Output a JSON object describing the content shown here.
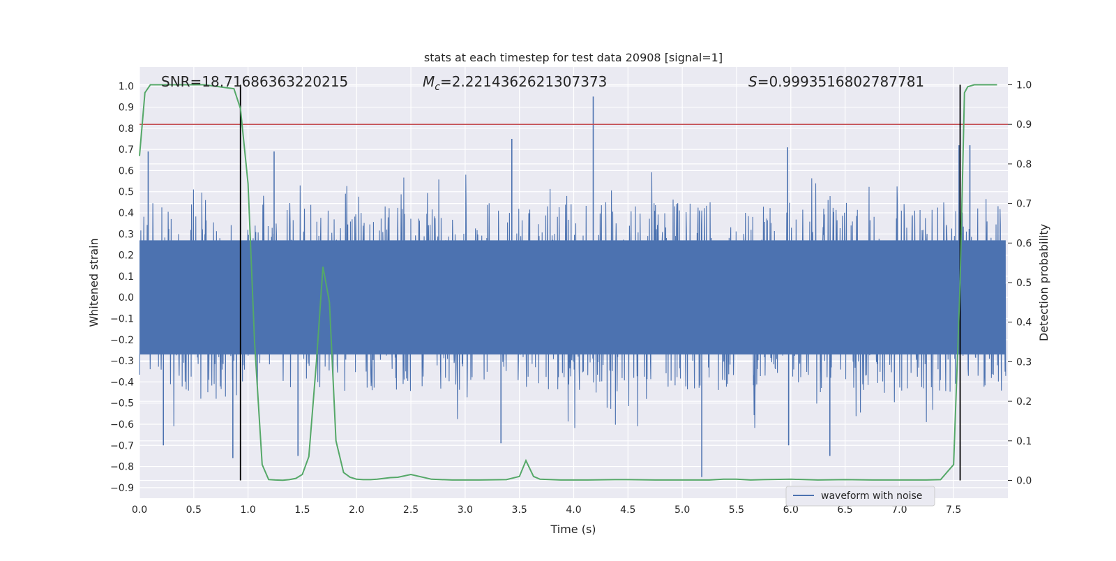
{
  "chart_data": {
    "type": "line",
    "title": "stats at each timestep for test data 20908 [signal=1]",
    "xlabel": "Time (s)",
    "ylabel": "Whitened strain",
    "y2label": "Detection probability",
    "xlim": [
      0.0,
      8.0
    ],
    "ylim": [
      -0.95,
      1.09
    ],
    "y2lim": [
      -0.045,
      1.045
    ],
    "x_ticks": [
      "0.0",
      "0.5",
      "1.0",
      "1.5",
      "2.0",
      "2.5",
      "3.0",
      "3.5",
      "4.0",
      "4.5",
      "5.0",
      "5.5",
      "6.0",
      "6.5",
      "7.0",
      "7.5"
    ],
    "y_ticks": [
      "1.0",
      "0.9",
      "0.8",
      "0.7",
      "0.6",
      "0.5",
      "0.4",
      "0.3",
      "0.2",
      "0.1",
      "0.0",
      "-0.1",
      "-0.2",
      "-0.3",
      "-0.4",
      "-0.5",
      "-0.6",
      "-0.7",
      "-0.8",
      "-0.9"
    ],
    "y2_ticks": [
      "1.0",
      "0.9",
      "0.8",
      "0.7",
      "0.6",
      "0.5",
      "0.4",
      "0.3",
      "0.2",
      "0.1",
      "0.0"
    ],
    "grid": true,
    "legend": {
      "placement": "lower-right",
      "entries": [
        "waveform with noise"
      ]
    },
    "annotations": {
      "snr": "SNR=18.71686363220215",
      "mc_symbol": "M",
      "mc_sub": "c",
      "mc_value": "=2.2214362621307373",
      "s_symbol": "S",
      "s_value": "=0.9993516802787781"
    },
    "threshold": {
      "axis": "y2",
      "value": 0.9,
      "color": "#c44e52"
    },
    "vlines": [
      0.93,
      7.56
    ],
    "series": [
      {
        "name": "waveform with noise",
        "axis": "y",
        "color": "#4c72b0",
        "envelope": {
          "upper_typical": 0.45,
          "lower_typical": -0.45,
          "core": 0.27
        },
        "spikes": [
          {
            "t": 4.18,
            "v": 0.95
          },
          {
            "t": 5.18,
            "v": -0.85
          },
          {
            "t": 3.43,
            "v": 0.75
          },
          {
            "t": 7.65,
            "v": 0.72
          },
          {
            "t": 0.08,
            "v": 0.69
          },
          {
            "t": 1.24,
            "v": 0.69
          },
          {
            "t": 0.22,
            "v": -0.7
          },
          {
            "t": 1.46,
            "v": -0.75
          },
          {
            "t": 0.86,
            "v": -0.76
          },
          {
            "t": 3.33,
            "v": -0.69
          },
          {
            "t": 6.36,
            "v": -0.75
          },
          {
            "t": 5.98,
            "v": -0.7
          },
          {
            "t": 7.55,
            "v": 0.72
          },
          {
            "t": 5.97,
            "v": 0.71
          }
        ]
      },
      {
        "name": "",
        "axis": "y2",
        "color": "#55a868",
        "x": [
          0.0,
          0.05,
          0.1,
          0.3,
          0.6,
          0.87,
          0.93,
          1.0,
          1.06,
          1.13,
          1.19,
          1.25,
          1.32,
          1.38,
          1.44,
          1.5,
          1.56,
          1.63,
          1.69,
          1.75,
          1.81,
          1.88,
          1.94,
          2.0,
          2.06,
          2.13,
          2.19,
          2.25,
          2.31,
          2.38,
          2.5,
          2.69,
          2.88,
          3.13,
          3.38,
          3.5,
          3.56,
          3.63,
          3.69,
          3.88,
          4.13,
          4.38,
          4.5,
          4.75,
          5.0,
          5.25,
          5.38,
          5.44,
          5.5,
          5.63,
          5.75,
          6.0,
          6.25,
          6.5,
          6.75,
          7.0,
          7.25,
          7.38,
          7.5,
          7.56,
          7.6,
          7.63,
          7.69,
          7.75,
          7.9
        ],
        "y": [
          0.82,
          0.98,
          1.0,
          1.0,
          1.0,
          0.99,
          0.94,
          0.75,
          0.35,
          0.04,
          0.002,
          0.001,
          0.0005,
          0.002,
          0.005,
          0.015,
          0.06,
          0.3,
          0.54,
          0.45,
          0.1,
          0.02,
          0.008,
          0.003,
          0.002,
          0.002,
          0.003,
          0.005,
          0.007,
          0.008,
          0.015,
          0.003,
          0.001,
          0.001,
          0.002,
          0.01,
          0.05,
          0.01,
          0.003,
          0.001,
          0.001,
          0.002,
          0.002,
          0.001,
          0.001,
          0.001,
          0.003,
          0.003,
          0.003,
          0.001,
          0.002,
          0.003,
          0.001,
          0.002,
          0.001,
          0.001,
          0.001,
          0.002,
          0.04,
          0.5,
          0.98,
          0.995,
          1.0,
          1.0,
          1.0
        ]
      }
    ]
  }
}
